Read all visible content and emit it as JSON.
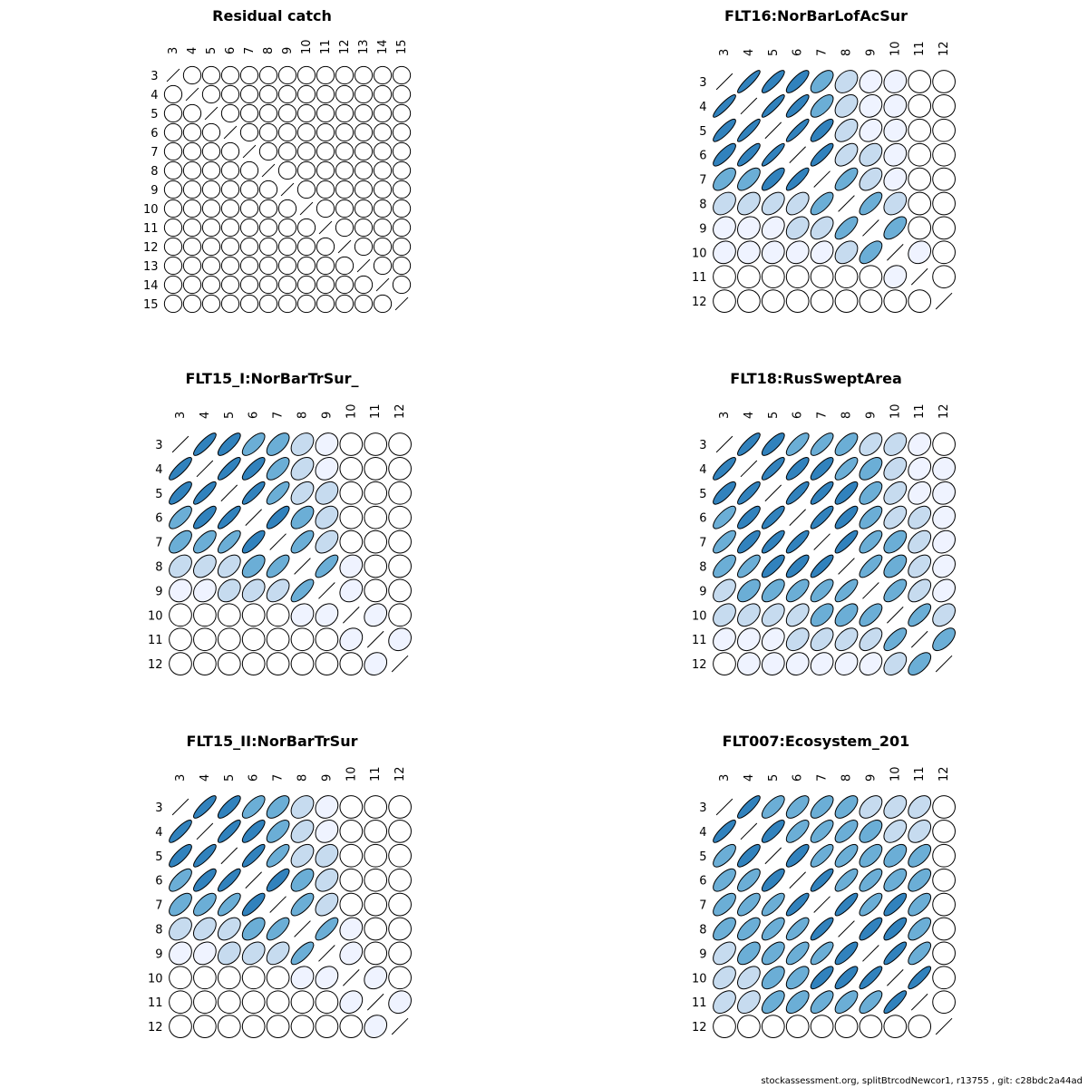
{
  "footer": "stockassessment.org, splitBtrcodNewcor1, r13755 , git: c28bdc2a44ad",
  "colors": {
    "outline": "#000000",
    "scale": [
      "#ffffff",
      "#eff3ff",
      "#c6dbef",
      "#6baed6",
      "#3182bd"
    ]
  },
  "chart_data": [
    {
      "type": "correlation-matrix",
      "title": "Residual catch",
      "labels": [
        "3",
        "4",
        "5",
        "6",
        "7",
        "8",
        "9",
        "10",
        "11",
        "12",
        "13",
        "14",
        "15"
      ],
      "matrix": [
        [
          1,
          0,
          0,
          0,
          0,
          0,
          0,
          0,
          0,
          0,
          0,
          0,
          0
        ],
        [
          0,
          1,
          0,
          0,
          0,
          0,
          0,
          0,
          0,
          0,
          0,
          0,
          0
        ],
        [
          0,
          0,
          1,
          0,
          0,
          0,
          0,
          0,
          0,
          0,
          0,
          0,
          0
        ],
        [
          0,
          0,
          0,
          1,
          0,
          0,
          0,
          0,
          0,
          0,
          0,
          0,
          0
        ],
        [
          0,
          0,
          0,
          0,
          1,
          0,
          0,
          0,
          0,
          0,
          0,
          0,
          0
        ],
        [
          0,
          0,
          0,
          0,
          0,
          1,
          0,
          0,
          0,
          0,
          0,
          0,
          0
        ],
        [
          0,
          0,
          0,
          0,
          0,
          0,
          1,
          0,
          0,
          0,
          0,
          0,
          0
        ],
        [
          0,
          0,
          0,
          0,
          0,
          0,
          0,
          1,
          0,
          0,
          0,
          0,
          0
        ],
        [
          0,
          0,
          0,
          0,
          0,
          0,
          0,
          0,
          1,
          0,
          0,
          0,
          0
        ],
        [
          0,
          0,
          0,
          0,
          0,
          0,
          0,
          0,
          0,
          1,
          0,
          0,
          0
        ],
        [
          0,
          0,
          0,
          0,
          0,
          0,
          0,
          0,
          0,
          0,
          1,
          0,
          0
        ],
        [
          0,
          0,
          0,
          0,
          0,
          0,
          0,
          0,
          0,
          0,
          0,
          1,
          0
        ],
        [
          0,
          0,
          0,
          0,
          0,
          0,
          0,
          0,
          0,
          0,
          0,
          0,
          1
        ]
      ]
    },
    {
      "type": "correlation-matrix",
      "title": "FLT16:NorBarLofAcSur",
      "labels": [
        "3",
        "4",
        "5",
        "6",
        "7",
        "8",
        "9",
        "10",
        "11",
        "12"
      ],
      "matrix": [
        [
          1,
          0.9,
          0.85,
          0.8,
          0.6,
          0.35,
          0.15,
          0.1,
          0,
          0
        ],
        [
          0.9,
          1,
          0.9,
          0.85,
          0.65,
          0.4,
          0.15,
          0.1,
          0,
          0
        ],
        [
          0.85,
          0.9,
          1,
          0.9,
          0.8,
          0.45,
          0.25,
          0.1,
          0,
          0
        ],
        [
          0.8,
          0.85,
          0.9,
          1,
          0.85,
          0.5,
          0.35,
          0.15,
          0,
          0
        ],
        [
          0.6,
          0.65,
          0.8,
          0.85,
          1,
          0.7,
          0.45,
          0.2,
          0,
          0
        ],
        [
          0.35,
          0.4,
          0.45,
          0.5,
          0.7,
          1,
          0.7,
          0.35,
          0,
          0
        ],
        [
          0.15,
          0.15,
          0.25,
          0.35,
          0.45,
          0.7,
          1,
          0.6,
          0,
          0
        ],
        [
          0.1,
          0.1,
          0.1,
          0.15,
          0.2,
          0.35,
          0.6,
          1,
          0.15,
          0
        ],
        [
          0,
          0,
          0,
          0,
          0,
          0,
          0,
          0.15,
          1,
          0
        ],
        [
          0,
          0,
          0,
          0,
          0,
          0,
          0,
          0,
          0,
          1
        ]
      ]
    },
    {
      "type": "correlation-matrix",
      "title": "FLT15_I:NorBarTrSur_",
      "labels": [
        "3",
        "4",
        "5",
        "6",
        "7",
        "8",
        "9",
        "10",
        "11",
        "12"
      ],
      "matrix": [
        [
          1,
          0.85,
          0.8,
          0.7,
          0.6,
          0.35,
          0.15,
          0,
          0,
          0
        ],
        [
          0.85,
          1,
          0.85,
          0.8,
          0.65,
          0.4,
          0.2,
          0,
          0,
          0
        ],
        [
          0.8,
          0.85,
          1,
          0.85,
          0.75,
          0.45,
          0.3,
          0,
          0,
          0
        ],
        [
          0.7,
          0.8,
          0.85,
          1,
          0.8,
          0.55,
          0.35,
          0,
          0,
          0
        ],
        [
          0.6,
          0.65,
          0.75,
          0.8,
          1,
          0.7,
          0.45,
          0,
          0,
          0
        ],
        [
          0.35,
          0.4,
          0.45,
          0.55,
          0.7,
          1,
          0.75,
          0.15,
          0,
          0
        ],
        [
          0.15,
          0.2,
          0.3,
          0.35,
          0.45,
          0.75,
          1,
          0.2,
          0,
          0
        ],
        [
          0,
          0,
          0,
          0,
          0,
          0.15,
          0.2,
          1,
          0.2,
          0
        ],
        [
          0,
          0,
          0,
          0,
          0,
          0,
          0,
          0.2,
          1,
          0.15
        ],
        [
          0,
          0,
          0,
          0,
          0,
          0,
          0,
          0,
          0.15,
          1
        ]
      ]
    },
    {
      "type": "correlation-matrix",
      "title": "FLT18:RusSweptArea",
      "labels": [
        "3",
        "4",
        "5",
        "6",
        "7",
        "8",
        "9",
        "10",
        "11",
        "12"
      ],
      "matrix": [
        [
          1,
          0.85,
          0.8,
          0.75,
          0.75,
          0.65,
          0.45,
          0.35,
          0.2,
          0
        ],
        [
          0.85,
          1,
          0.85,
          0.8,
          0.8,
          0.75,
          0.55,
          0.4,
          0.2,
          0.1
        ],
        [
          0.8,
          0.85,
          1,
          0.85,
          0.85,
          0.8,
          0.6,
          0.45,
          0.25,
          0.1
        ],
        [
          0.75,
          0.8,
          0.85,
          1,
          0.85,
          0.8,
          0.65,
          0.5,
          0.4,
          0.15
        ],
        [
          0.75,
          0.8,
          0.85,
          0.85,
          1,
          0.85,
          0.7,
          0.55,
          0.45,
          0.2
        ],
        [
          0.65,
          0.75,
          0.8,
          0.8,
          0.85,
          1,
          0.75,
          0.55,
          0.45,
          0.2
        ],
        [
          0.45,
          0.55,
          0.6,
          0.65,
          0.7,
          0.75,
          1,
          0.65,
          0.5,
          0.25
        ],
        [
          0.35,
          0.4,
          0.45,
          0.5,
          0.55,
          0.55,
          0.65,
          1,
          0.7,
          0.4
        ],
        [
          0.2,
          0.2,
          0.25,
          0.4,
          0.45,
          0.45,
          0.5,
          0.7,
          1,
          0.6
        ],
        [
          0,
          0.1,
          0.1,
          0.15,
          0.2,
          0.2,
          0.25,
          0.4,
          0.6,
          1
        ]
      ]
    },
    {
      "type": "correlation-matrix",
      "title": "FLT15_II:NorBarTrSur",
      "labels": [
        "3",
        "4",
        "5",
        "6",
        "7",
        "8",
        "9",
        "10",
        "11",
        "12"
      ],
      "matrix": [
        [
          1,
          0.85,
          0.8,
          0.7,
          0.6,
          0.35,
          0.15,
          0,
          0,
          0
        ],
        [
          0.85,
          1,
          0.85,
          0.8,
          0.65,
          0.4,
          0.2,
          0,
          0,
          0
        ],
        [
          0.8,
          0.85,
          1,
          0.85,
          0.75,
          0.45,
          0.3,
          0,
          0,
          0
        ],
        [
          0.7,
          0.8,
          0.85,
          1,
          0.8,
          0.55,
          0.35,
          0,
          0,
          0
        ],
        [
          0.6,
          0.65,
          0.75,
          0.8,
          1,
          0.7,
          0.45,
          0,
          0,
          0
        ],
        [
          0.35,
          0.4,
          0.45,
          0.55,
          0.7,
          1,
          0.75,
          0.15,
          0,
          0
        ],
        [
          0.15,
          0.2,
          0.3,
          0.35,
          0.45,
          0.75,
          1,
          0.2,
          0,
          0
        ],
        [
          0,
          0,
          0,
          0,
          0,
          0.15,
          0.2,
          1,
          0.2,
          0
        ],
        [
          0,
          0,
          0,
          0,
          0,
          0,
          0,
          0.2,
          1,
          0.15
        ],
        [
          0,
          0,
          0,
          0,
          0,
          0,
          0,
          0,
          0.15,
          1
        ]
      ]
    },
    {
      "type": "correlation-matrix",
      "title": "FLT007:Ecosystem_201",
      "labels": [
        "3",
        "4",
        "5",
        "6",
        "7",
        "8",
        "9",
        "10",
        "11",
        "12"
      ],
      "matrix": [
        [
          1,
          0.85,
          0.7,
          0.65,
          0.65,
          0.6,
          0.45,
          0.4,
          0.4,
          0
        ],
        [
          0.85,
          1,
          0.8,
          0.7,
          0.7,
          0.65,
          0.55,
          0.45,
          0.4,
          0
        ],
        [
          0.7,
          0.8,
          1,
          0.8,
          0.75,
          0.7,
          0.6,
          0.55,
          0.6,
          0
        ],
        [
          0.65,
          0.7,
          0.8,
          1,
          0.85,
          0.75,
          0.7,
          0.6,
          0.6,
          0
        ],
        [
          0.65,
          0.7,
          0.75,
          0.85,
          1,
          0.85,
          0.75,
          0.8,
          0.65,
          0
        ],
        [
          0.6,
          0.65,
          0.7,
          0.75,
          0.85,
          1,
          0.8,
          0.8,
          0.65,
          0
        ],
        [
          0.45,
          0.55,
          0.6,
          0.7,
          0.75,
          0.8,
          1,
          0.85,
          0.7,
          0
        ],
        [
          0.4,
          0.45,
          0.55,
          0.6,
          0.8,
          0.8,
          0.85,
          1,
          0.85,
          0
        ],
        [
          0.4,
          0.4,
          0.6,
          0.6,
          0.65,
          0.65,
          0.7,
          0.85,
          1,
          0
        ],
        [
          0,
          0,
          0,
          0,
          0,
          0,
          0,
          0,
          0,
          1
        ]
      ]
    }
  ]
}
